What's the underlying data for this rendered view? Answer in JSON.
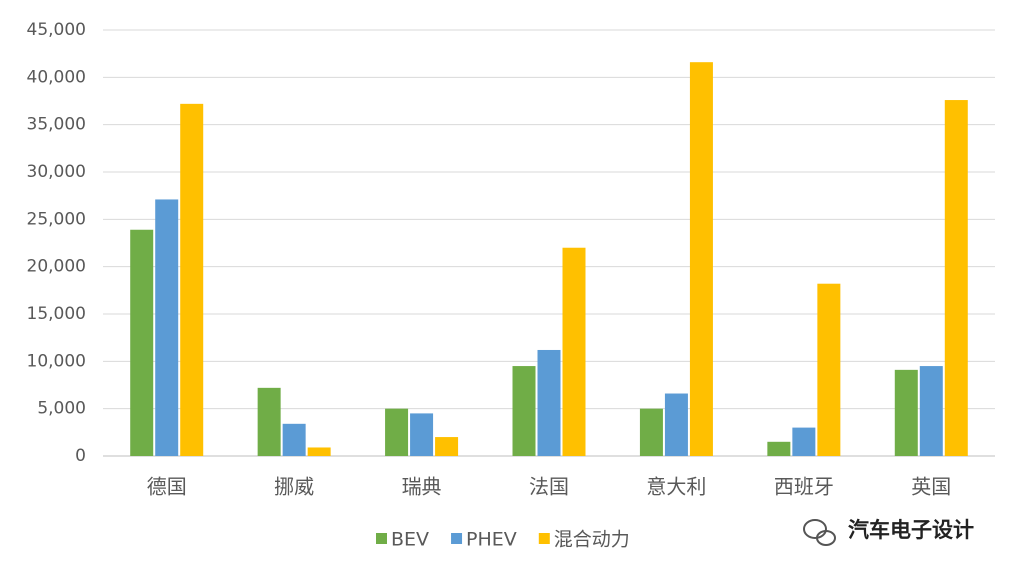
{
  "chart_data": {
    "type": "bar",
    "categories": [
      "德国",
      "挪威",
      "瑞典",
      "法国",
      "意大利",
      "西班牙",
      "英国"
    ],
    "series": [
      {
        "name": "BEV",
        "color": "#70ad47",
        "values": [
          23900,
          7200,
          5000,
          9500,
          5000,
          1500,
          9100
        ]
      },
      {
        "name": "PHEV",
        "color": "#5b9bd5",
        "values": [
          27100,
          3400,
          4500,
          11200,
          6600,
          3000,
          9500
        ]
      },
      {
        "name": "混合动力",
        "color": "#ffc000",
        "values": [
          37200,
          900,
          2000,
          22000,
          41600,
          18200,
          37600
        ]
      }
    ],
    "ylim": [
      0,
      45000
    ],
    "yticks": [
      0,
      {
        "value": 5000,
        "label": "5,000"
      },
      {
        "value": 10000,
        "label": "10,000"
      },
      {
        "value": 15000,
        "label": "15,000"
      },
      {
        "value": 20000,
        "label": "20,000"
      },
      {
        "value": 25000,
        "label": "25,000"
      },
      {
        "value": 30000,
        "label": "30,000"
      },
      {
        "value": 35000,
        "label": "35,000"
      },
      {
        "value": 40000,
        "label": "40,000"
      },
      {
        "value": 45000,
        "label": "45,000"
      }
    ],
    "grid": true,
    "legend": "bottom",
    "watermark": "汽车电子设计"
  }
}
